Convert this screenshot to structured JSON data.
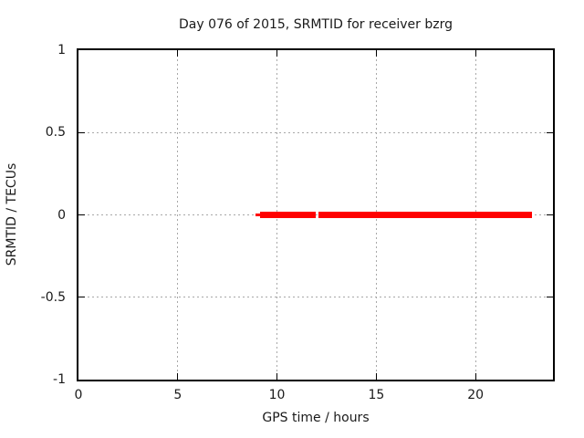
{
  "colors": {
    "line": "#ff0000",
    "grid": "#a8a8a8",
    "border": "#000000",
    "text": "#1a1a1a",
    "background": "#ffffff"
  },
  "chart_data": {
    "type": "line",
    "title": "Day 076 of 2015, SRMTID for receiver bzrg",
    "xlabel": "GPS time / hours",
    "ylabel": "SRMTID / TECUs",
    "xlim": [
      0,
      23.9
    ],
    "ylim": [
      -1,
      1
    ],
    "xticks": [
      0,
      5,
      10,
      15,
      20
    ],
    "yticks": [
      -1,
      -0.5,
      0,
      0.5,
      1
    ],
    "xtick_labels": [
      "0",
      "5",
      "10",
      "15",
      "20"
    ],
    "ytick_labels": [
      "-1",
      "-0.5",
      "0",
      "0.5",
      "1"
    ],
    "grid": true,
    "grid_xticks": [
      5,
      10,
      15,
      20
    ],
    "grid_yticks": [
      -0.5,
      0,
      0.5
    ],
    "legend": "none",
    "series": [
      {
        "name": "SRMTID",
        "color": "#ff0000",
        "y_value": 0,
        "segments": [
          {
            "x_start": 8.9,
            "x_end": 9.15,
            "style": "thin"
          },
          {
            "x_start": 9.15,
            "x_end": 11.95,
            "style": "thick"
          },
          {
            "x_start": 12.1,
            "x_end": 22.85,
            "style": "thick"
          }
        ]
      }
    ]
  }
}
